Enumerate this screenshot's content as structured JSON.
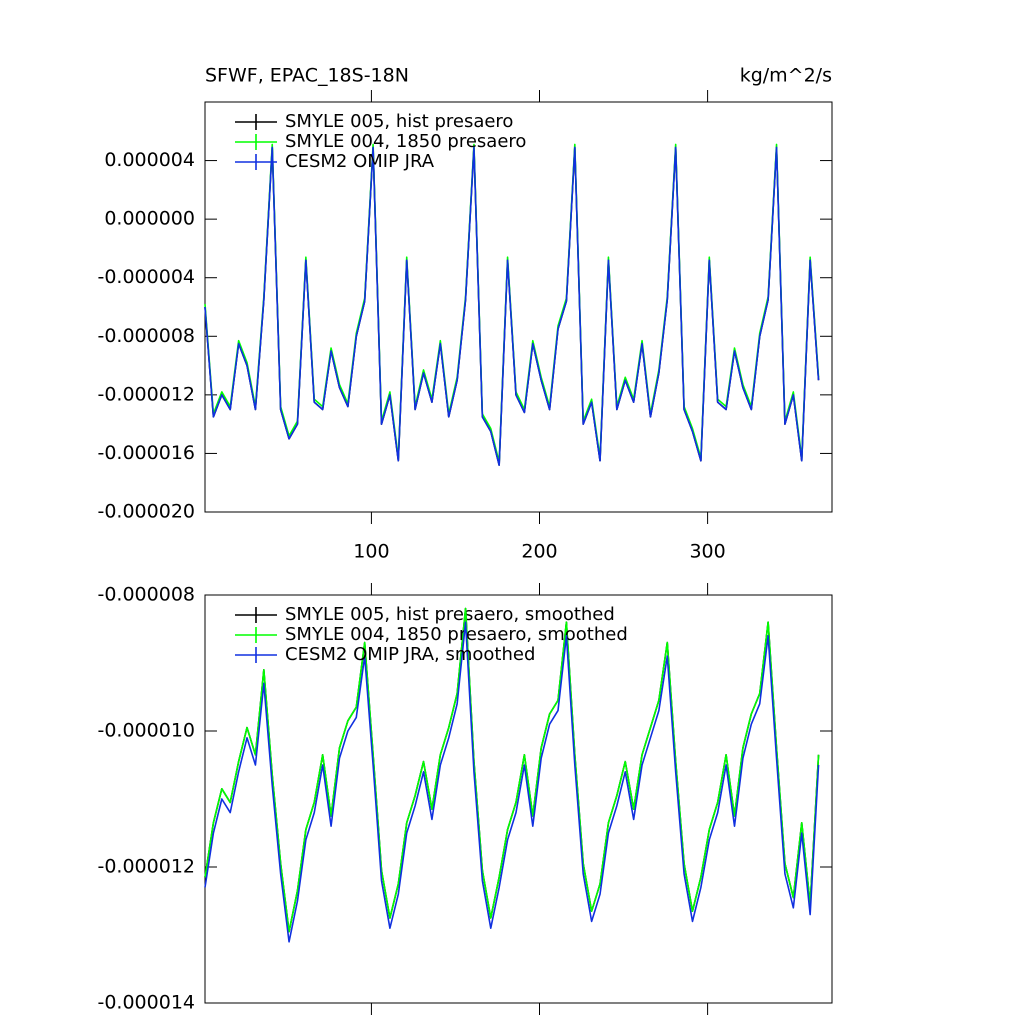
{
  "chart_data": [
    {
      "type": "line",
      "title": "SFWF, EPAC_18S-18N",
      "right_title": "kg/m^2/s",
      "x": [
        1,
        6,
        11,
        16,
        21,
        26,
        31,
        36,
        41,
        46,
        51,
        56,
        61,
        66,
        71,
        76,
        81,
        86,
        91,
        96,
        101,
        106,
        111,
        116,
        121,
        126,
        131,
        136,
        141,
        146,
        151,
        156,
        161,
        166,
        171,
        176,
        181,
        186,
        191,
        196,
        201,
        206,
        211,
        216,
        221,
        226,
        231,
        236,
        241,
        246,
        251,
        256,
        261,
        266,
        271,
        276,
        281,
        286,
        291,
        296,
        301,
        306,
        311,
        316,
        321,
        326,
        331,
        336,
        341,
        346,
        351,
        356,
        361,
        366
      ],
      "xlim": [
        1,
        374
      ],
      "xticks": [
        100,
        200,
        300
      ],
      "ylim": [
        -2e-05,
        8e-06
      ],
      "yticks": [
        {
          "value": -2e-05,
          "label": "-0.000020"
        },
        {
          "value": -1.6e-05,
          "label": "-0.000016"
        },
        {
          "value": -1.2e-05,
          "label": "-0.000012"
        },
        {
          "value": -8e-06,
          "label": "-0.000008"
        },
        {
          "value": -4e-06,
          "label": "-0.000004"
        },
        {
          "value": 0,
          "label": "0.000000"
        },
        {
          "value": 4e-06,
          "label": "0.000004"
        }
      ],
      "series": [
        {
          "name": "SMYLE 005, hist presaero",
          "color": "#000000",
          "values": [
            -6e-06,
            -1.35e-05,
            -1.2e-05,
            -1.3e-05,
            -8.5e-06,
            -1e-05,
            -1.3e-05,
            -5.5e-06,
            4.9e-06,
            -1.3e-05,
            -1.5e-05,
            -1.4e-05,
            -2.8e-06,
            -1.25e-05,
            -1.3e-05,
            -9e-06,
            -1.15e-05,
            -1.28e-05,
            -8e-06,
            -5.6e-06,
            4.9e-06,
            -1.4e-05,
            -1.2e-05,
            -1.65e-05,
            -2.8e-06,
            -1.3e-05,
            -1.05e-05,
            -1.25e-05,
            -8.5e-06,
            -1.35e-05,
            -1.1e-05,
            -5.5e-06,
            4.9e-06,
            -1.35e-05,
            -1.45e-05,
            -1.68e-05,
            -2.8e-06,
            -1.2e-05,
            -1.32e-05,
            -8.5e-06,
            -1.1e-05,
            -1.3e-05,
            -7.5e-06,
            -5.6e-06,
            4.9e-06,
            -1.4e-05,
            -1.25e-05,
            -1.65e-05,
            -2.8e-06,
            -1.3e-05,
            -1.1e-05,
            -1.25e-05,
            -8.5e-06,
            -1.35e-05,
            -1.05e-05,
            -5.5e-06,
            4.9e-06,
            -1.3e-05,
            -1.45e-05,
            -1.65e-05,
            -2.8e-06,
            -1.25e-05,
            -1.3e-05,
            -9e-06,
            -1.15e-05,
            -1.3e-05,
            -8e-06,
            -5.5e-06,
            4.9e-06,
            -1.4e-05,
            -1.2e-05,
            -1.65e-05,
            -2.8e-06,
            -1.1e-05
          ]
        },
        {
          "name": "SMYLE 004, 1850 presaero",
          "color": "#00ff00",
          "values": [
            -5.8e-06,
            -1.33e-05,
            -1.18e-05,
            -1.28e-05,
            -8.3e-06,
            -9.8e-06,
            -1.28e-05,
            -5.3e-06,
            5.1e-06,
            -1.28e-05,
            -1.48e-05,
            -1.38e-05,
            -2.6e-06,
            -1.23e-05,
            -1.28e-05,
            -8.8e-06,
            -1.13e-05,
            -1.26e-05,
            -7.8e-06,
            -5.4e-06,
            5.1e-06,
            -1.38e-05,
            -1.18e-05,
            -1.63e-05,
            -2.6e-06,
            -1.28e-05,
            -1.03e-05,
            -1.23e-05,
            -8.3e-06,
            -1.33e-05,
            -1.08e-05,
            -5.3e-06,
            5.1e-06,
            -1.33e-05,
            -1.43e-05,
            -1.66e-05,
            -2.6e-06,
            -1.18e-05,
            -1.3e-05,
            -8.3e-06,
            -1.08e-05,
            -1.28e-05,
            -7.3e-06,
            -5.4e-06,
            5.1e-06,
            -1.38e-05,
            -1.23e-05,
            -1.63e-05,
            -2.6e-06,
            -1.28e-05,
            -1.08e-05,
            -1.23e-05,
            -8.3e-06,
            -1.33e-05,
            -1.03e-05,
            -5.3e-06,
            5.1e-06,
            -1.28e-05,
            -1.43e-05,
            -1.63e-05,
            -2.6e-06,
            -1.23e-05,
            -1.28e-05,
            -8.8e-06,
            -1.13e-05,
            -1.28e-05,
            -7.8e-06,
            -5.3e-06,
            5.1e-06,
            -1.38e-05,
            -1.18e-05,
            -1.63e-05,
            -2.6e-06,
            -1.08e-05
          ]
        },
        {
          "name": "CESM2 OMIP JRA",
          "color": "#1030e0",
          "values": [
            -6e-06,
            -1.35e-05,
            -1.2e-05,
            -1.3e-05,
            -8.5e-06,
            -1e-05,
            -1.3e-05,
            -5.5e-06,
            4.9e-06,
            -1.3e-05,
            -1.5e-05,
            -1.4e-05,
            -2.8e-06,
            -1.25e-05,
            -1.3e-05,
            -9e-06,
            -1.15e-05,
            -1.28e-05,
            -8e-06,
            -5.6e-06,
            4.9e-06,
            -1.4e-05,
            -1.2e-05,
            -1.65e-05,
            -2.8e-06,
            -1.3e-05,
            -1.05e-05,
            -1.25e-05,
            -8.5e-06,
            -1.35e-05,
            -1.1e-05,
            -5.5e-06,
            4.9e-06,
            -1.35e-05,
            -1.45e-05,
            -1.68e-05,
            -2.8e-06,
            -1.2e-05,
            -1.32e-05,
            -8.5e-06,
            -1.1e-05,
            -1.3e-05,
            -7.5e-06,
            -5.6e-06,
            4.9e-06,
            -1.4e-05,
            -1.25e-05,
            -1.65e-05,
            -2.8e-06,
            -1.3e-05,
            -1.1e-05,
            -1.25e-05,
            -8.5e-06,
            -1.35e-05,
            -1.05e-05,
            -5.5e-06,
            4.9e-06,
            -1.3e-05,
            -1.45e-05,
            -1.65e-05,
            -2.8e-06,
            -1.25e-05,
            -1.3e-05,
            -9e-06,
            -1.15e-05,
            -1.3e-05,
            -8e-06,
            -5.5e-06,
            4.9e-06,
            -1.4e-05,
            -1.2e-05,
            -1.65e-05,
            -2.8e-06,
            -1.1e-05
          ]
        }
      ]
    },
    {
      "type": "line",
      "x": [
        1,
        6,
        11,
        16,
        21,
        26,
        31,
        36,
        41,
        46,
        51,
        56,
        61,
        66,
        71,
        76,
        81,
        86,
        91,
        96,
        101,
        106,
        111,
        116,
        121,
        126,
        131,
        136,
        141,
        146,
        151,
        156,
        161,
        166,
        171,
        176,
        181,
        186,
        191,
        196,
        201,
        206,
        211,
        216,
        221,
        226,
        231,
        236,
        241,
        246,
        251,
        256,
        261,
        266,
        271,
        276,
        281,
        286,
        291,
        296,
        301,
        306,
        311,
        316,
        321,
        326,
        331,
        336,
        341,
        346,
        351,
        356,
        361,
        366
      ],
      "xlim": [
        1,
        374
      ],
      "xticks": [
        100,
        200,
        300
      ],
      "ylim": [
        -1.4e-05,
        -8e-06
      ],
      "yticks": [
        {
          "value": -1.4e-05,
          "label": "-0.000014"
        },
        {
          "value": -1.2e-05,
          "label": "-0.000012"
        },
        {
          "value": -1e-05,
          "label": "-0.000010"
        },
        {
          "value": -8e-06,
          "label": "-0.000008"
        }
      ],
      "series": [
        {
          "name": "SMYLE 005, hist presaero, smoothed",
          "color": "#000000",
          "values": [
            -1.215e-05,
            -1.135e-05,
            -1.085e-05,
            -1.105e-05,
            -1.045e-05,
            -9.95e-06,
            -1.035e-05,
            -9.1e-06,
            -1.065e-05,
            -1.195e-05,
            -1.295e-05,
            -1.235e-05,
            -1.145e-05,
            -1.105e-05,
            -1.035e-05,
            -1.125e-05,
            -1.025e-05,
            -9.85e-06,
            -9.65e-06,
            -8.7e-06,
            -1.035e-05,
            -1.205e-05,
            -1.275e-05,
            -1.225e-05,
            -1.135e-05,
            -1.095e-05,
            -1.045e-05,
            -1.115e-05,
            -1.035e-05,
            -9.95e-06,
            -9.45e-06,
            -8.2e-06,
            -1.045e-05,
            -1.205e-05,
            -1.275e-05,
            -1.215e-05,
            -1.145e-05,
            -1.105e-05,
            -1.035e-05,
            -1.125e-05,
            -1.025e-05,
            -9.75e-06,
            -9.55e-06,
            -8.4e-06,
            -1.035e-05,
            -1.195e-05,
            -1.265e-05,
            -1.225e-05,
            -1.135e-05,
            -1.095e-05,
            -1.045e-05,
            -1.115e-05,
            -1.035e-05,
            -9.95e-06,
            -9.55e-06,
            -8.7e-06,
            -1.045e-05,
            -1.195e-05,
            -1.265e-05,
            -1.215e-05,
            -1.145e-05,
            -1.105e-05,
            -1.035e-05,
            -1.125e-05,
            -1.025e-05,
            -9.75e-06,
            -9.45e-06,
            -8.4e-06,
            -1.025e-05,
            -1.195e-05,
            -1.245e-05,
            -1.135e-05,
            -1.255e-05,
            -1.035e-05
          ]
        },
        {
          "name": "SMYLE 004, 1850 presaero, smoothed",
          "color": "#00ff00",
          "values": [
            -1.215e-05,
            -1.135e-05,
            -1.085e-05,
            -1.105e-05,
            -1.045e-05,
            -9.95e-06,
            -1.035e-05,
            -9.1e-06,
            -1.065e-05,
            -1.195e-05,
            -1.295e-05,
            -1.235e-05,
            -1.145e-05,
            -1.105e-05,
            -1.035e-05,
            -1.125e-05,
            -1.025e-05,
            -9.85e-06,
            -9.65e-06,
            -8.7e-06,
            -1.035e-05,
            -1.205e-05,
            -1.275e-05,
            -1.225e-05,
            -1.135e-05,
            -1.095e-05,
            -1.045e-05,
            -1.115e-05,
            -1.035e-05,
            -9.95e-06,
            -9.45e-06,
            -8.2e-06,
            -1.045e-05,
            -1.205e-05,
            -1.275e-05,
            -1.215e-05,
            -1.145e-05,
            -1.105e-05,
            -1.035e-05,
            -1.125e-05,
            -1.025e-05,
            -9.75e-06,
            -9.55e-06,
            -8.4e-06,
            -1.035e-05,
            -1.195e-05,
            -1.265e-05,
            -1.225e-05,
            -1.135e-05,
            -1.095e-05,
            -1.045e-05,
            -1.115e-05,
            -1.035e-05,
            -9.95e-06,
            -9.55e-06,
            -8.7e-06,
            -1.045e-05,
            -1.195e-05,
            -1.265e-05,
            -1.215e-05,
            -1.145e-05,
            -1.105e-05,
            -1.035e-05,
            -1.125e-05,
            -1.025e-05,
            -9.75e-06,
            -9.45e-06,
            -8.4e-06,
            -1.025e-05,
            -1.195e-05,
            -1.245e-05,
            -1.135e-05,
            -1.255e-05,
            -1.035e-05
          ]
        },
        {
          "name": "CESM2 OMIP JRA, smoothed",
          "color": "#1030e0",
          "values": [
            -1.23e-05,
            -1.15e-05,
            -1.1e-05,
            -1.12e-05,
            -1.06e-05,
            -1.01e-05,
            -1.05e-05,
            -9.3e-06,
            -1.08e-05,
            -1.21e-05,
            -1.31e-05,
            -1.25e-05,
            -1.16e-05,
            -1.12e-05,
            -1.05e-05,
            -1.14e-05,
            -1.04e-05,
            -1e-05,
            -9.8e-06,
            -8.9e-06,
            -1.05e-05,
            -1.22e-05,
            -1.29e-05,
            -1.24e-05,
            -1.15e-05,
            -1.11e-05,
            -1.06e-05,
            -1.13e-05,
            -1.05e-05,
            -1.01e-05,
            -9.6e-06,
            -8.4e-06,
            -1.06e-05,
            -1.22e-05,
            -1.29e-05,
            -1.23e-05,
            -1.16e-05,
            -1.12e-05,
            -1.05e-05,
            -1.14e-05,
            -1.04e-05,
            -9.9e-06,
            -9.7e-06,
            -8.6e-06,
            -1.05e-05,
            -1.21e-05,
            -1.28e-05,
            -1.24e-05,
            -1.15e-05,
            -1.11e-05,
            -1.06e-05,
            -1.13e-05,
            -1.05e-05,
            -1.01e-05,
            -9.7e-06,
            -8.9e-06,
            -1.06e-05,
            -1.21e-05,
            -1.28e-05,
            -1.23e-05,
            -1.16e-05,
            -1.12e-05,
            -1.05e-05,
            -1.14e-05,
            -1.04e-05,
            -9.9e-06,
            -9.6e-06,
            -8.6e-06,
            -1.04e-05,
            -1.21e-05,
            -1.26e-05,
            -1.15e-05,
            -1.27e-05,
            -1.05e-05
          ]
        }
      ]
    }
  ]
}
